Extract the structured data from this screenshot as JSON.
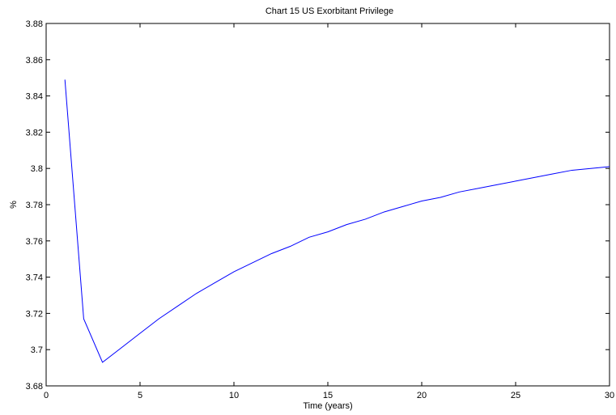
{
  "chart_data": {
    "type": "line",
    "title": "Chart 15 US Exorbitant Privilege",
    "xlabel": "Time (years)",
    "ylabel": "%",
    "xlim": [
      0,
      30
    ],
    "ylim": [
      3.68,
      3.88
    ],
    "xticks": [
      0,
      5,
      10,
      15,
      20,
      25,
      30
    ],
    "yticks": [
      3.68,
      3.7,
      3.72,
      3.74,
      3.76,
      3.78,
      3.8,
      3.82,
      3.84,
      3.86,
      3.88
    ],
    "ytick_labels": [
      "3.68",
      "3.7",
      "3.72",
      "3.74",
      "3.76",
      "3.78",
      "3.8",
      "3.82",
      "3.84",
      "3.86",
      "3.88"
    ],
    "grid": false,
    "line_color": "#0000ff",
    "series": [
      {
        "x": [
          1,
          2,
          3,
          4,
          5,
          6,
          7,
          8,
          9,
          10,
          11,
          12,
          13,
          14,
          15,
          16,
          17,
          18,
          19,
          20,
          21,
          22,
          23,
          24,
          25,
          26,
          27,
          28,
          29,
          30
        ],
        "values": [
          3.849,
          3.717,
          3.693,
          3.701,
          3.709,
          3.717,
          3.724,
          3.731,
          3.737,
          3.743,
          3.748,
          3.753,
          3.757,
          3.762,
          3.765,
          3.769,
          3.772,
          3.776,
          3.779,
          3.782,
          3.784,
          3.787,
          3.789,
          3.791,
          3.793,
          3.795,
          3.797,
          3.799,
          3.8,
          3.801
        ]
      }
    ]
  }
}
